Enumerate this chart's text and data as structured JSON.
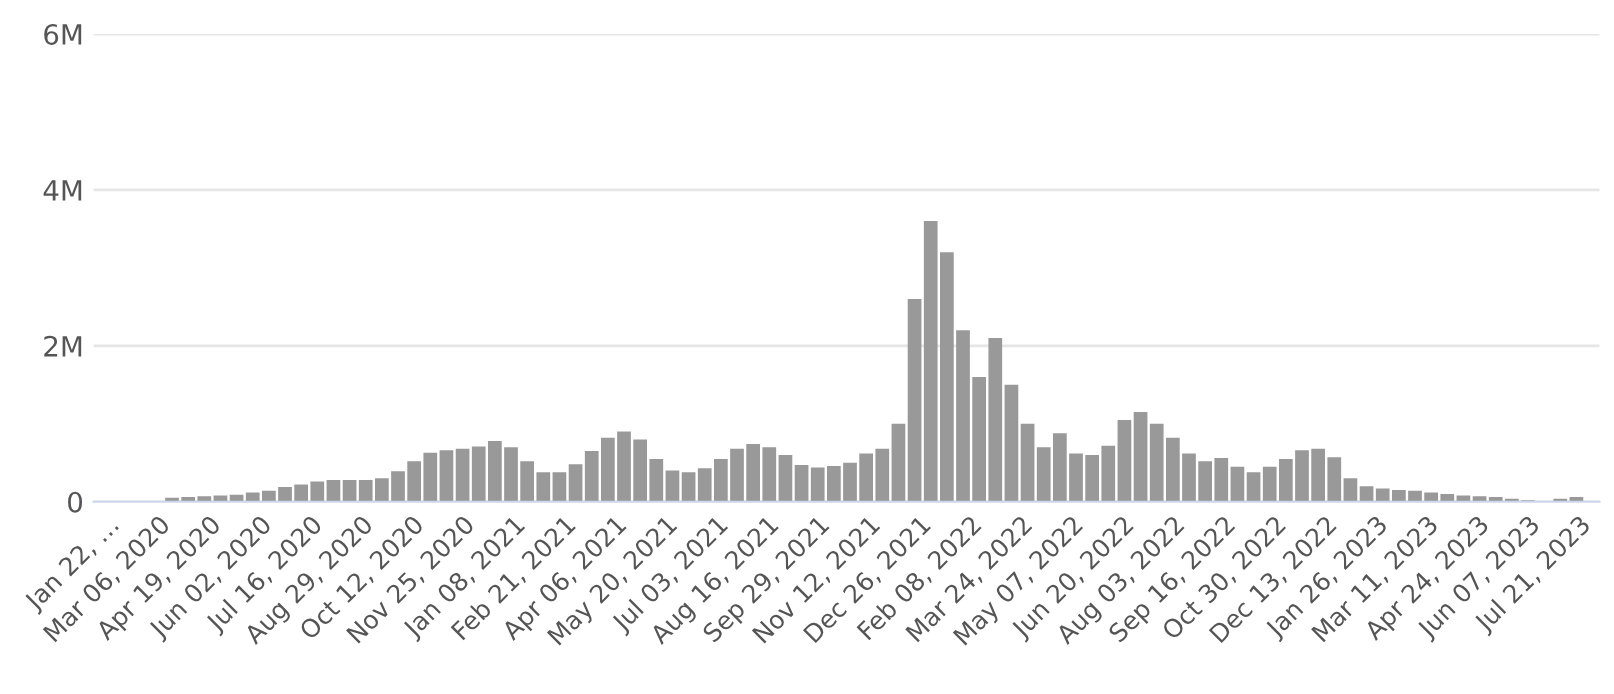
{
  "chart_data": {
    "type": "bar",
    "color": "#999999",
    "grid": "y",
    "x": [
      "2020-01-22",
      "2020-02-05",
      "2020-02-19",
      "2020-03-04",
      "2020-03-18",
      "2020-04-01",
      "2020-04-15",
      "2020-04-29",
      "2020-05-13",
      "2020-05-27",
      "2020-06-10",
      "2020-06-24",
      "2020-07-08",
      "2020-07-22",
      "2020-08-05",
      "2020-08-19",
      "2020-09-02",
      "2020-09-16",
      "2020-09-30",
      "2020-10-14",
      "2020-10-28",
      "2020-11-11",
      "2020-11-25",
      "2020-12-09",
      "2020-12-23",
      "2021-01-06",
      "2021-01-20",
      "2021-02-03",
      "2021-02-17",
      "2021-03-03",
      "2021-03-17",
      "2021-03-31",
      "2021-04-14",
      "2021-04-28",
      "2021-05-12",
      "2021-05-26",
      "2021-06-09",
      "2021-06-23",
      "2021-07-07",
      "2021-07-21",
      "2021-08-04",
      "2021-08-18",
      "2021-09-01",
      "2021-09-15",
      "2021-09-29",
      "2021-10-13",
      "2021-10-27",
      "2021-11-10",
      "2021-11-24",
      "2021-12-08",
      "2021-12-22",
      "2022-01-05",
      "2022-01-19",
      "2022-02-02",
      "2022-02-16",
      "2022-03-02",
      "2022-03-16",
      "2022-03-30",
      "2022-04-13",
      "2022-04-27",
      "2022-05-11",
      "2022-05-25",
      "2022-06-08",
      "2022-06-22",
      "2022-07-06",
      "2022-07-20",
      "2022-08-03",
      "2022-08-17",
      "2022-08-31",
      "2022-09-14",
      "2022-09-28",
      "2022-10-12",
      "2022-10-26",
      "2022-11-09",
      "2022-11-23",
      "2022-12-07",
      "2022-12-21",
      "2023-01-04",
      "2023-01-18",
      "2023-02-01",
      "2023-02-15",
      "2023-03-01",
      "2023-03-15",
      "2023-03-29",
      "2023-04-12",
      "2023-04-26",
      "2023-05-10",
      "2023-05-24",
      "2023-06-07",
      "2023-06-21",
      "2023-07-05",
      "2023-07-19"
    ],
    "values": [
      0.0,
      0.0,
      0.0,
      0.0,
      0.05,
      0.06,
      0.07,
      0.08,
      0.09,
      0.12,
      0.14,
      0.19,
      0.22,
      0.26,
      0.28,
      0.28,
      0.28,
      0.3,
      0.39,
      0.52,
      0.63,
      0.66,
      0.68,
      0.71,
      0.78,
      0.7,
      0.52,
      0.38,
      0.38,
      0.48,
      0.65,
      0.82,
      0.9,
      0.8,
      0.55,
      0.4,
      0.38,
      0.43,
      0.55,
      0.68,
      0.74,
      0.7,
      0.6,
      0.47,
      0.44,
      0.46,
      0.5,
      0.62,
      0.68,
      1.0,
      2.6,
      3.6,
      3.2,
      2.2,
      1.6,
      2.1,
      1.5,
      1.0,
      0.7,
      0.88,
      0.62,
      0.6,
      0.72,
      1.05,
      1.15,
      1.0,
      0.82,
      0.62,
      0.52,
      0.56,
      0.45,
      0.38,
      0.45,
      0.55,
      0.66,
      0.68,
      0.57,
      0.3,
      0.2,
      0.17,
      0.15,
      0.14,
      0.12,
      0.1,
      0.08,
      0.07,
      0.06,
      0.04,
      0.02,
      null,
      0.04,
      0.06
    ],
    "xlim": [
      "2020-01-10",
      "2023-08-08"
    ],
    "xticks": [
      {
        "value": "2020-01-22",
        "label": "Jan 22, …"
      },
      {
        "value": "2020-03-06",
        "label": "Mar 06, 2020"
      },
      {
        "value": "2020-04-19",
        "label": "Apr 19, 2020"
      },
      {
        "value": "2020-06-02",
        "label": "Jun 02, 2020"
      },
      {
        "value": "2020-07-16",
        "label": "Jul 16, 2020"
      },
      {
        "value": "2020-08-29",
        "label": "Aug 29, 2020"
      },
      {
        "value": "2020-10-12",
        "label": "Oct 12, 2020"
      },
      {
        "value": "2020-11-25",
        "label": "Nov 25, 2020"
      },
      {
        "value": "2021-01-08",
        "label": "Jan 08, 2021"
      },
      {
        "value": "2021-02-21",
        "label": "Feb 21, 2021"
      },
      {
        "value": "2021-04-06",
        "label": "Apr 06, 2021"
      },
      {
        "value": "2021-05-20",
        "label": "May 20, 2021"
      },
      {
        "value": "2021-07-03",
        "label": "Jul 03, 2021"
      },
      {
        "value": "2021-08-16",
        "label": "Aug 16, 2021"
      },
      {
        "value": "2021-09-29",
        "label": "Sep 29, 2021"
      },
      {
        "value": "2021-11-12",
        "label": "Nov 12, 2021"
      },
      {
        "value": "2021-12-26",
        "label": "Dec 26, 2021"
      },
      {
        "value": "2022-02-08",
        "label": "Feb 08, 2022"
      },
      {
        "value": "2022-03-24",
        "label": "Mar 24, 2022"
      },
      {
        "value": "2022-05-07",
        "label": "May 07, 2022"
      },
      {
        "value": "2022-06-20",
        "label": "Jun 20, 2022"
      },
      {
        "value": "2022-08-03",
        "label": "Aug 03, 2022"
      },
      {
        "value": "2022-09-16",
        "label": "Sep 16, 2022"
      },
      {
        "value": "2022-10-30",
        "label": "Oct 30, 2022"
      },
      {
        "value": "2022-12-13",
        "label": "Dec 13, 2022"
      },
      {
        "value": "2023-01-26",
        "label": "Jan 26, 2023"
      },
      {
        "value": "2023-03-11",
        "label": "Mar 11, 2023"
      },
      {
        "value": "2023-04-24",
        "label": "Apr 24, 2023"
      },
      {
        "value": "2023-06-07",
        "label": "Jun 07, 2023"
      },
      {
        "value": "2023-07-21",
        "label": "Jul 21, 2023"
      }
    ],
    "ylim": [
      0,
      6
    ],
    "yticks": [
      {
        "value": 0,
        "label": "0"
      },
      {
        "value": 2,
        "label": "2M"
      },
      {
        "value": 4,
        "label": "4M"
      },
      {
        "value": 6,
        "label": "6M"
      }
    ]
  }
}
